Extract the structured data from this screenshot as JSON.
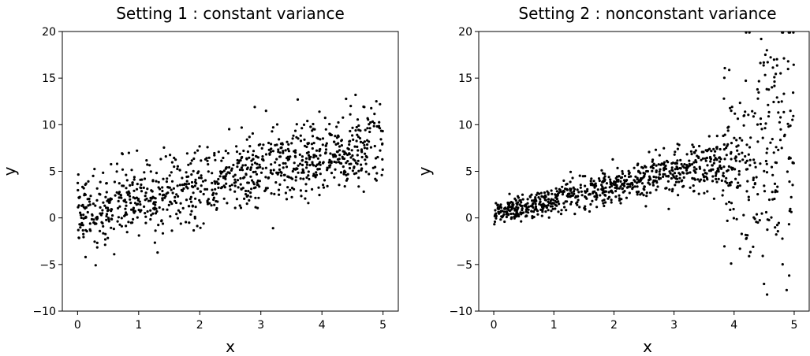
{
  "chart_data": [
    {
      "type": "scatter",
      "title": "Setting 1 : constant variance",
      "xlabel": "x",
      "ylabel": "y",
      "xlim": [
        -0.25,
        5.25
      ],
      "ylim": [
        -10,
        20
      ],
      "xticks": [
        "0",
        "1",
        "2",
        "3",
        "4",
        "5"
      ],
      "yticks": [
        "−10",
        "−5",
        "0",
        "5",
        "10",
        "15",
        "20"
      ],
      "marker_color": "#000000",
      "grid": false,
      "n_points": 1000,
      "model": {
        "relation": "y = 0.5 + 1.5x + noise",
        "noise": "constant variance"
      },
      "notable_points": [
        {
          "x": 2.9,
          "y": 11.9
        },
        {
          "x": 4.55,
          "y": 13.2
        },
        {
          "x": 4.95,
          "y": 12.2
        },
        {
          "x": 0.6,
          "y": -3.9
        },
        {
          "x": 3.2,
          "y": -1.1
        }
      ]
    },
    {
      "type": "scatter",
      "title": "Setting 2 : nonconstant variance",
      "xlabel": "x",
      "ylabel": "y",
      "xlim": [
        -0.25,
        5.25
      ],
      "ylim": [
        -10,
        20
      ],
      "xticks": [
        "0",
        "1",
        "2",
        "3",
        "4",
        "5"
      ],
      "yticks": [
        "−10",
        "−5",
        "0",
        "5",
        "10",
        "15",
        "20"
      ],
      "marker_color": "#000000",
      "grid": false,
      "n_points": 1000,
      "model": {
        "relation": "y = 0.5 + 1.5x + noise",
        "noise": "variance grows with x, jumps near x = 3.8"
      },
      "notable_points": [
        {
          "x": 4.2,
          "y": 19.9
        },
        {
          "x": 4.45,
          "y": 19.2
        },
        {
          "x": 3.95,
          "y": -4.9
        },
        {
          "x": 4.25,
          "y": -4.1
        },
        {
          "x": 4.9,
          "y": 16.8
        }
      ]
    }
  ]
}
